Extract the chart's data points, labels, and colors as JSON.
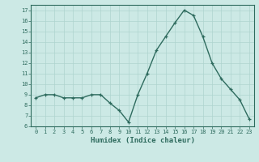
{
  "x": [
    0,
    1,
    2,
    3,
    4,
    5,
    6,
    7,
    8,
    9,
    10,
    11,
    12,
    13,
    14,
    15,
    16,
    17,
    18,
    19,
    20,
    21,
    22,
    23
  ],
  "y": [
    8.7,
    9.0,
    9.0,
    8.7,
    8.7,
    8.7,
    9.0,
    9.0,
    8.2,
    7.5,
    6.4,
    9.0,
    11.0,
    13.2,
    14.5,
    15.8,
    17.0,
    16.5,
    14.5,
    12.0,
    10.5,
    9.5,
    8.5,
    6.7
  ],
  "xlabel": "Humidex (Indice chaleur)",
  "xlim": [
    -0.5,
    23.5
  ],
  "ylim": [
    6,
    17.5
  ],
  "yticks": [
    6,
    7,
    8,
    9,
    10,
    11,
    12,
    13,
    14,
    15,
    16,
    17
  ],
  "xticks": [
    0,
    1,
    2,
    3,
    4,
    5,
    6,
    7,
    8,
    9,
    10,
    11,
    12,
    13,
    14,
    15,
    16,
    17,
    18,
    19,
    20,
    21,
    22,
    23
  ],
  "line_color": "#2e6b5e",
  "marker": "+",
  "bg_color": "#cce9e5",
  "grid_color": "#aed4cf",
  "label_color": "#2e6b5e",
  "tick_fontsize": 5.0,
  "xlabel_fontsize": 6.5
}
